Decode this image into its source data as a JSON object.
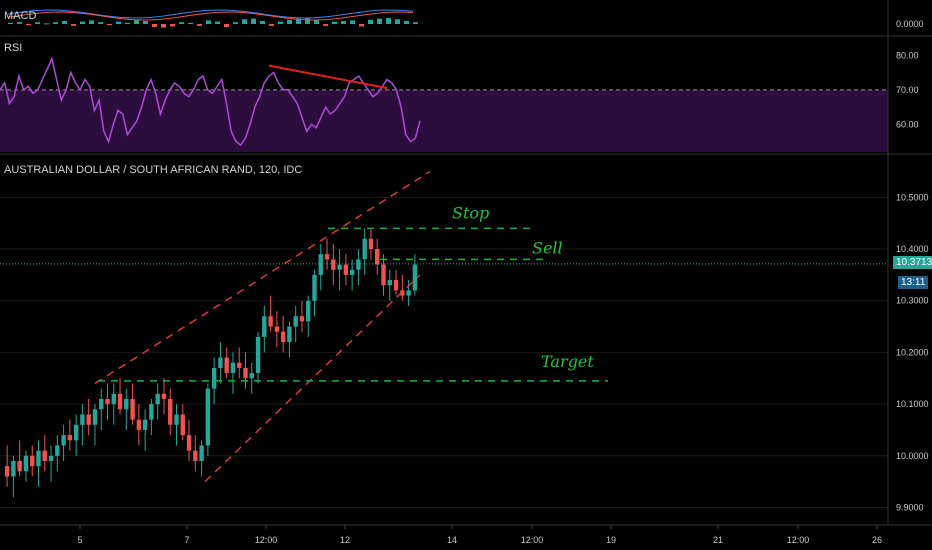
{
  "chart_data": [
    {
      "type": "bar",
      "pane": "macd",
      "title": "MACD",
      "y_ticks": [
        "0.0000"
      ],
      "histogram": [
        0.2,
        0.3,
        -0.2,
        0.3,
        0.1,
        0.3,
        0.5,
        -0.3,
        0.4,
        0.6,
        0.3,
        -0.2,
        0.4,
        0.2,
        0.7,
        0.5,
        -0.5,
        -0.6,
        -0.4,
        0.3,
        0.2,
        -0.3,
        0.6,
        0.4,
        -0.5,
        0.3,
        0.8,
        0.9,
        0.5,
        -0.3,
        0.4,
        0.7,
        0.9,
        1.0,
        0.6,
        -0.3,
        0.4,
        0.5,
        0.6,
        -0.4,
        0.7,
        0.9,
        1.0,
        0.8,
        0.5,
        0.3
      ],
      "colors": {
        "macd_line": "#3b82f6",
        "signal_line": "#ef5350",
        "up": "#26a69a",
        "down": "#ef5350"
      }
    },
    {
      "type": "line",
      "pane": "rsi",
      "title": "RSI",
      "y_ticks": [
        "80.00",
        "70.00",
        "60.00"
      ],
      "ylim": [
        52,
        85
      ],
      "overbought_level": 70,
      "values": [
        70,
        72,
        66,
        68,
        74,
        70,
        71,
        69,
        70,
        73,
        76,
        79,
        73,
        67,
        70,
        75,
        72,
        70,
        73,
        71,
        64,
        67,
        58,
        55,
        60,
        64,
        63,
        57,
        59,
        61,
        65,
        70,
        73,
        69,
        63,
        67,
        70,
        72,
        71,
        69,
        68,
        70,
        73,
        74,
        70,
        69,
        71,
        73,
        66,
        58,
        55,
        54,
        56,
        60,
        65,
        68,
        72,
        74,
        75,
        72,
        70,
        70,
        68,
        66,
        62,
        58,
        60,
        59,
        62,
        65,
        63,
        64,
        66,
        68,
        72,
        73,
        74,
        72,
        70,
        68,
        69,
        71,
        73,
        72,
        70,
        65,
        57,
        55,
        56,
        61
      ],
      "trendline_from": [
        57,
        77
      ],
      "trendline_to": [
        82,
        70.5
      ],
      "colors": {
        "line": "#b04ad8",
        "band": "#2b0e3d",
        "trendline": "#e02020",
        "level": "#9a8aa0"
      }
    },
    {
      "type": "candlestick",
      "pane": "price",
      "title": "AUSTRALIAN DOLLAR / SOUTH AFRICAN RAND, 120, IDC",
      "ylim": [
        9.87,
        10.58
      ],
      "y_ticks": [
        "10.5000",
        "10.4000",
        "10.3000",
        "10.2000",
        "10.1000",
        "10.0000",
        "9.9000"
      ],
      "x_ticks": [
        "5",
        "7",
        "12:00",
        "12",
        "14",
        "12:00",
        "19",
        "21",
        "12:00",
        "26"
      ],
      "last_price": "10.3713",
      "countdown": "13:11",
      "annotations": [
        {
          "label": "Stop",
          "level": 10.44
        },
        {
          "label": "Sell",
          "level": 10.38
        },
        {
          "label": "Target",
          "level": 10.145
        }
      ],
      "ohlc": [
        [
          9.98,
          10.02,
          9.94,
          9.96
        ],
        [
          9.96,
          10.0,
          9.92,
          9.99
        ],
        [
          9.99,
          10.03,
          9.96,
          9.97
        ],
        [
          9.97,
          10.01,
          9.95,
          10.0
        ],
        [
          10.0,
          10.02,
          9.96,
          9.98
        ],
        [
          9.98,
          10.03,
          9.94,
          10.01
        ],
        [
          10.01,
          10.04,
          9.97,
          9.99
        ],
        [
          9.99,
          10.02,
          9.95,
          10.0
        ],
        [
          10.0,
          10.04,
          9.97,
          10.02
        ],
        [
          10.02,
          10.06,
          9.99,
          10.04
        ],
        [
          10.04,
          10.07,
          10.01,
          10.03
        ],
        [
          10.03,
          10.08,
          10.0,
          10.06
        ],
        [
          10.06,
          10.1,
          10.02,
          10.08
        ],
        [
          10.08,
          10.11,
          10.04,
          10.06
        ],
        [
          10.06,
          10.1,
          10.02,
          10.09
        ],
        [
          10.09,
          10.13,
          10.05,
          10.11
        ],
        [
          10.11,
          10.14,
          10.07,
          10.1
        ],
        [
          10.1,
          10.14,
          10.06,
          10.12
        ],
        [
          10.12,
          10.15,
          10.08,
          10.09
        ],
        [
          10.09,
          10.13,
          10.05,
          10.11
        ],
        [
          10.11,
          10.14,
          10.06,
          10.07
        ],
        [
          10.07,
          10.1,
          10.02,
          10.05
        ],
        [
          10.05,
          10.09,
          10.01,
          10.07
        ],
        [
          10.07,
          10.11,
          10.04,
          10.1
        ],
        [
          10.1,
          10.14,
          10.07,
          10.12
        ],
        [
          10.12,
          10.15,
          10.08,
          10.11
        ],
        [
          10.11,
          10.13,
          10.04,
          10.06
        ],
        [
          10.06,
          10.1,
          10.02,
          10.08
        ],
        [
          10.08,
          10.1,
          10.03,
          10.04
        ],
        [
          10.04,
          10.07,
          9.99,
          10.01
        ],
        [
          10.01,
          10.04,
          9.97,
          9.99
        ],
        [
          9.99,
          10.03,
          9.96,
          10.02
        ],
        [
          10.02,
          10.14,
          10.0,
          10.13
        ],
        [
          10.13,
          10.19,
          10.1,
          10.17
        ],
        [
          10.17,
          10.22,
          10.14,
          10.19
        ],
        [
          10.19,
          10.21,
          10.15,
          10.16
        ],
        [
          10.16,
          10.2,
          10.12,
          10.18
        ],
        [
          10.18,
          10.21,
          10.15,
          10.17
        ],
        [
          10.17,
          10.2,
          10.13,
          10.15
        ],
        [
          10.15,
          10.18,
          10.12,
          10.16
        ],
        [
          10.16,
          10.24,
          10.14,
          10.23
        ],
        [
          10.23,
          10.29,
          10.2,
          10.27
        ],
        [
          10.27,
          10.31,
          10.24,
          10.25
        ],
        [
          10.25,
          10.28,
          10.21,
          10.24
        ],
        [
          10.24,
          10.27,
          10.2,
          10.22
        ],
        [
          10.22,
          10.26,
          10.19,
          10.25
        ],
        [
          10.25,
          10.29,
          10.22,
          10.27
        ],
        [
          10.27,
          10.3,
          10.24,
          10.26
        ],
        [
          10.26,
          10.31,
          10.23,
          10.3
        ],
        [
          10.3,
          10.36,
          10.27,
          10.35
        ],
        [
          10.35,
          10.41,
          10.32,
          10.39
        ],
        [
          10.39,
          10.42,
          10.36,
          10.38
        ],
        [
          10.38,
          10.41,
          10.33,
          10.36
        ],
        [
          10.36,
          10.4,
          10.32,
          10.37
        ],
        [
          10.37,
          10.39,
          10.33,
          10.35
        ],
        [
          10.35,
          10.38,
          10.32,
          10.36
        ],
        [
          10.36,
          10.4,
          10.33,
          10.38
        ],
        [
          10.38,
          10.44,
          10.35,
          10.42
        ],
        [
          10.42,
          10.44,
          10.38,
          10.4
        ],
        [
          10.4,
          10.42,
          10.35,
          10.37
        ],
        [
          10.37,
          10.39,
          10.31,
          10.33
        ],
        [
          10.33,
          10.36,
          10.3,
          10.34
        ],
        [
          10.34,
          10.36,
          10.31,
          10.32
        ],
        [
          10.32,
          10.35,
          10.3,
          10.31
        ],
        [
          10.31,
          10.34,
          10.29,
          10.32
        ],
        [
          10.32,
          10.39,
          10.31,
          10.37
        ]
      ],
      "colors": {
        "up": "#26a69a",
        "down": "#ef5350",
        "channel": "#d63a3a",
        "level_line": "#19b33a",
        "price_line": "#2bb3a6",
        "grid": "#1a1a1a"
      }
    }
  ]
}
